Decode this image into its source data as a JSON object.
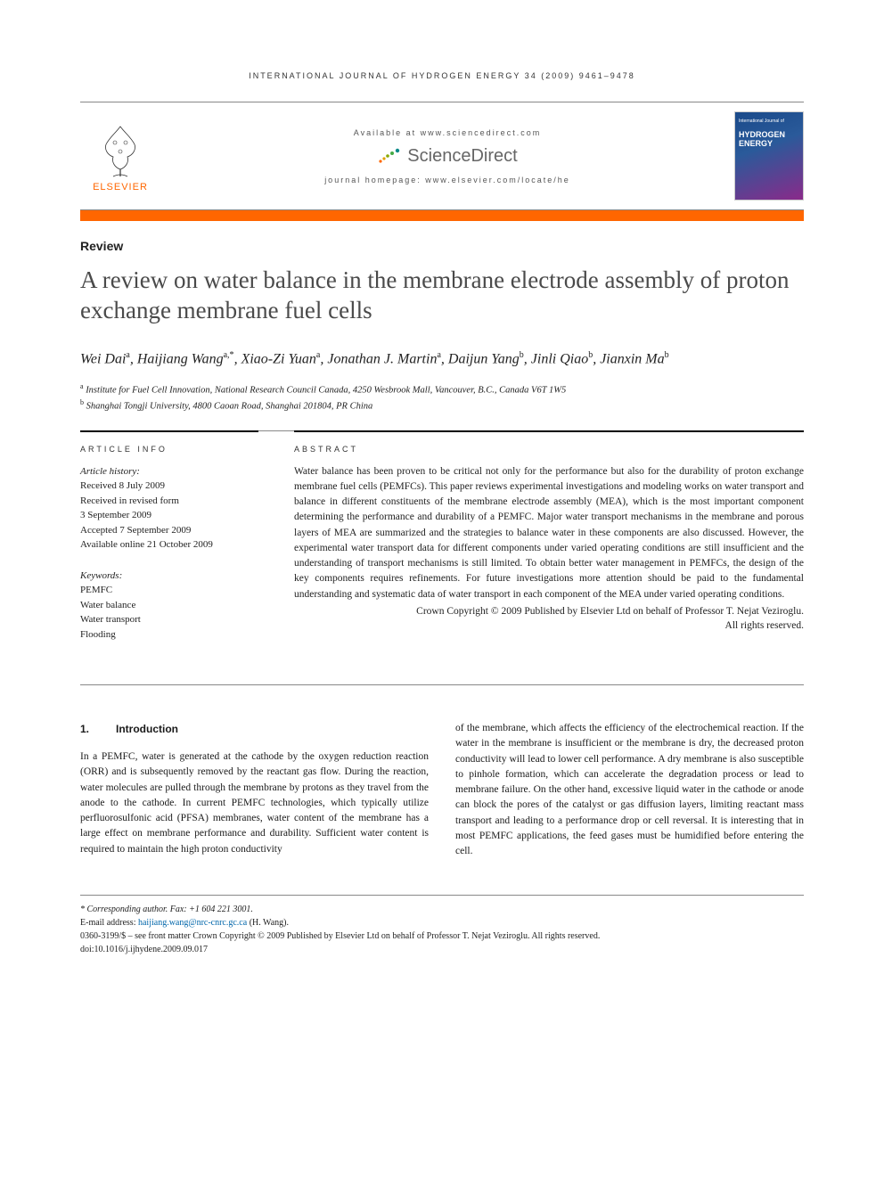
{
  "running_head": "INTERNATIONAL JOURNAL OF HYDROGEN ENERGY 34 (2009) 9461–9478",
  "banner": {
    "elsevier": "ELSEVIER",
    "available_at": "Available at www.sciencedirect.com",
    "sciencedirect": "ScienceDirect",
    "homepage": "journal homepage: www.elsevier.com/locate/he",
    "cover_small": "International Journal of",
    "cover_big": "HYDROGEN ENERGY"
  },
  "colors": {
    "orange": "#ff6600",
    "title_gray": "#4a4a4a",
    "rule_gray": "#888888",
    "link_blue": "#0066aa"
  },
  "article_type": "Review",
  "title": "A review on water balance in the membrane electrode assembly of proton exchange membrane fuel cells",
  "authors_html": "Wei Dai<sup>a</sup>, Haijiang Wang<sup>a,*</sup>, Xiao-Zi Yuan<sup>a</sup>, Jonathan J. Martin<sup>a</sup>, Daijun Yang<sup>b</sup>, Jinli Qiao<sup>b</sup>, Jianxin Ma<sup>b</sup>",
  "affiliations": [
    {
      "sup": "a",
      "text": "Institute for Fuel Cell Innovation, National Research Council Canada, 4250 Wesbrook Mall, Vancouver, B.C., Canada V6T 1W5"
    },
    {
      "sup": "b",
      "text": "Shanghai Tongji University, 4800 Caoan Road, Shanghai 201804, PR China"
    }
  ],
  "info": {
    "heading": "ARTICLE INFO",
    "history_label": "Article history:",
    "history": [
      "Received 8 July 2009",
      "Received in revised form",
      "3 September 2009",
      "Accepted 7 September 2009",
      "Available online 21 October 2009"
    ],
    "keywords_label": "Keywords:",
    "keywords": [
      "PEMFC",
      "Water balance",
      "Water transport",
      "Flooding"
    ]
  },
  "abstract": {
    "heading": "ABSTRACT",
    "text": "Water balance has been proven to be critical not only for the performance but also for the durability of proton exchange membrane fuel cells (PEMFCs). This paper reviews experimental investigations and modeling works on water transport and balance in different constituents of the membrane electrode assembly (MEA), which is the most important component determining the performance and durability of a PEMFC. Major water transport mechanisms in the membrane and porous layers of MEA are summarized and the strategies to balance water in these components are also discussed. However, the experimental water transport data for different components under varied operating conditions are still insufficient and the understanding of transport mechanisms is still limited. To obtain better water management in PEMFCs, the design of the key components requires refinements. For future investigations more attention should be paid to the fundamental understanding and systematic data of water transport in each component of the MEA under varied operating conditions.",
    "copyright1": "Crown Copyright © 2009 Published by Elsevier Ltd on behalf of Professor T. Nejat Veziroglu.",
    "copyright2": "All rights reserved."
  },
  "section": {
    "num": "1.",
    "name": "Introduction"
  },
  "body": {
    "col1": "In a PEMFC, water is generated at the cathode by the oxygen reduction reaction (ORR) and is subsequently removed by the reactant gas flow. During the reaction, water molecules are pulled through the membrane by protons as they travel from the anode to the cathode. In current PEMFC technologies, which typically utilize perfluorosulfonic acid (PFSA) membranes, water content of the membrane has a large effect on membrane performance and durability. Sufficient water content is required to maintain the high proton conductivity",
    "col2": "of the membrane, which affects the efficiency of the electrochemical reaction. If the water in the membrane is insufficient or the membrane is dry, the decreased proton conductivity will lead to lower cell performance. A dry membrane is also susceptible to pinhole formation, which can accelerate the degradation process or lead to membrane failure. On the other hand, excessive liquid water in the cathode or anode can block the pores of the catalyst or gas diffusion layers, limiting reactant mass transport and leading to a performance drop or cell reversal. It is interesting that in most PEMFC applications, the feed gases must be humidified before entering the cell."
  },
  "footnotes": {
    "corr": "* Corresponding author. Fax: +1 604 221 3001.",
    "email_label": "E-mail address: ",
    "email": "haijiang.wang@nrc-cnrc.gc.ca",
    "email_suffix": " (H. Wang).",
    "issn": "0360-3199/$ – see front matter Crown Copyright © 2009 Published by Elsevier Ltd on behalf of Professor T. Nejat Veziroglu. All rights reserved.",
    "doi": "doi:10.1016/j.ijhydene.2009.09.017"
  }
}
